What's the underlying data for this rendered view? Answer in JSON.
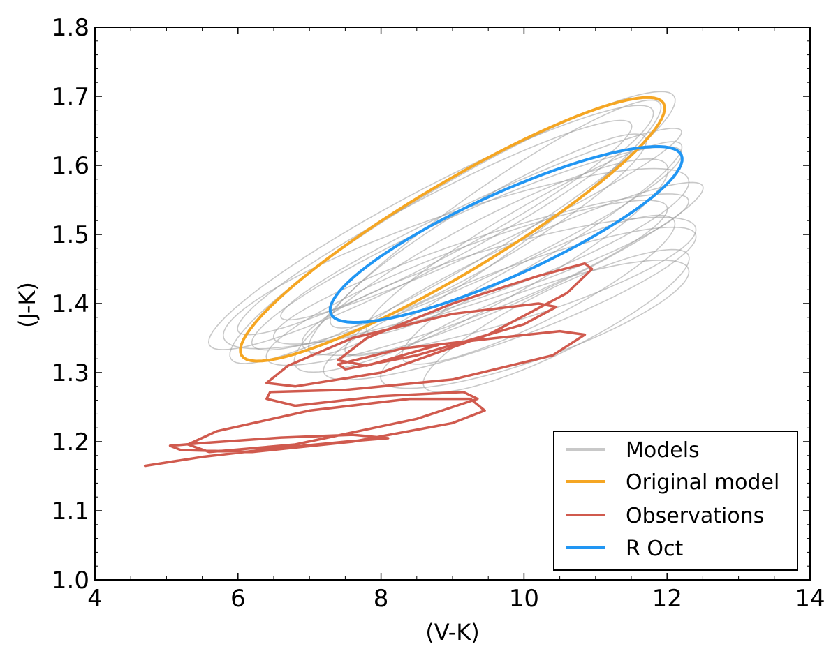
{
  "chart_data": {
    "type": "line",
    "title": "",
    "xlabel": "(V-K)",
    "ylabel": "(J-K)",
    "xlim": [
      4,
      14
    ],
    "ylim": [
      1.0,
      1.8
    ],
    "x_ticks": [
      4,
      6,
      8,
      10,
      12,
      14
    ],
    "x_tick_labels": [
      "4",
      "6",
      "8",
      "10",
      "12",
      "14"
    ],
    "y_ticks": [
      1.0,
      1.1,
      1.2,
      1.3,
      1.4,
      1.5,
      1.6,
      1.7,
      1.8
    ],
    "y_tick_labels": [
      "1.0",
      "1.1",
      "1.2",
      "1.3",
      "1.4",
      "1.5",
      "1.6",
      "1.7",
      "1.8"
    ],
    "grid": false,
    "legend_position": "bottom-right",
    "colors": {
      "models": "#9a9a9a",
      "original": "#f5a623",
      "observations": "#d05a4e",
      "roct": "#2196f3"
    },
    "legend": [
      {
        "label": "Models",
        "color": "#c8c8c8"
      },
      {
        "label": "Original model",
        "color": "#f5a623"
      },
      {
        "label": "Observations",
        "color": "#d05a4e"
      },
      {
        "label": "R Oct",
        "color": "#2196f3"
      }
    ],
    "series": [
      {
        "name": "Models",
        "kind": "ellipses",
        "color": "#9a9a9a",
        "ellipses": [
          {
            "x1": 5.9,
            "y1": 1.32,
            "x2": 12.1,
            "y2": 1.7,
            "w": 0.12
          },
          {
            "x1": 6.2,
            "y1": 1.34,
            "x2": 12.2,
            "y2": 1.62,
            "w": 0.1
          },
          {
            "x1": 6.5,
            "y1": 1.35,
            "x2": 12.3,
            "y2": 1.55,
            "w": 0.09
          },
          {
            "x1": 5.6,
            "y1": 1.34,
            "x2": 11.8,
            "y2": 1.68,
            "w": 0.11
          },
          {
            "x1": 6.8,
            "y1": 1.31,
            "x2": 12.0,
            "y2": 1.6,
            "w": 0.12
          },
          {
            "x1": 7.2,
            "y1": 1.3,
            "x2": 12.4,
            "y2": 1.5,
            "w": 0.1
          },
          {
            "x1": 6.0,
            "y1": 1.36,
            "x2": 11.5,
            "y2": 1.66,
            "w": 0.09
          },
          {
            "x1": 7.5,
            "y1": 1.33,
            "x2": 12.5,
            "y2": 1.57,
            "w": 0.08
          },
          {
            "x1": 8.0,
            "y1": 1.29,
            "x2": 12.3,
            "y2": 1.45,
            "w": 0.1
          },
          {
            "x1": 6.6,
            "y1": 1.38,
            "x2": 12.2,
            "y2": 1.65,
            "w": 0.07
          },
          {
            "x1": 7.0,
            "y1": 1.33,
            "x2": 11.9,
            "y2": 1.69,
            "w": 0.1
          },
          {
            "x1": 8.3,
            "y1": 1.32,
            "x2": 12.1,
            "y2": 1.52,
            "w": 0.09
          },
          {
            "x1": 5.8,
            "y1": 1.35,
            "x2": 12.3,
            "y2": 1.58,
            "w": 0.13
          },
          {
            "x1": 7.8,
            "y1": 1.36,
            "x2": 12.2,
            "y2": 1.63,
            "w": 0.08
          },
          {
            "x1": 6.4,
            "y1": 1.32,
            "x2": 12.0,
            "y2": 1.54,
            "w": 0.1
          },
          {
            "x1": 8.6,
            "y1": 1.28,
            "x2": 12.3,
            "y2": 1.47,
            "w": 0.09
          },
          {
            "x1": 7.3,
            "y1": 1.37,
            "x2": 11.7,
            "y2": 1.64,
            "w": 0.09
          },
          {
            "x1": 6.9,
            "y1": 1.34,
            "x2": 12.4,
            "y2": 1.51,
            "w": 0.11
          }
        ]
      },
      {
        "name": "Original model",
        "kind": "ellipse",
        "color": "#f5a623",
        "x1": 6.05,
        "y1": 1.325,
        "x2": 11.95,
        "y2": 1.69,
        "w": 0.13
      },
      {
        "name": "R Oct",
        "kind": "ellipse",
        "color": "#2196f3",
        "x1": 7.3,
        "y1": 1.385,
        "x2": 12.2,
        "y2": 1.615,
        "w": 0.12
      },
      {
        "name": "Observations",
        "kind": "path",
        "color": "#d05a4e",
        "points": [
          [
            4.7,
            1.165
          ],
          [
            5.5,
            1.178
          ],
          [
            6.5,
            1.19
          ],
          [
            7.5,
            1.2
          ],
          [
            8.1,
            1.205
          ],
          [
            7.6,
            1.21
          ],
          [
            6.6,
            1.206
          ],
          [
            5.5,
            1.198
          ],
          [
            5.05,
            1.194
          ],
          [
            5.2,
            1.188
          ],
          [
            6.2,
            1.185
          ],
          [
            7.6,
            1.2
          ],
          [
            9.0,
            1.227
          ],
          [
            9.45,
            1.245
          ],
          [
            9.25,
            1.262
          ],
          [
            8.4,
            1.262
          ],
          [
            7.0,
            1.245
          ],
          [
            5.7,
            1.215
          ],
          [
            5.3,
            1.196
          ],
          [
            5.6,
            1.185
          ],
          [
            6.8,
            1.196
          ],
          [
            8.5,
            1.233
          ],
          [
            9.35,
            1.262
          ],
          [
            9.15,
            1.272
          ],
          [
            8.0,
            1.266
          ],
          [
            6.8,
            1.252
          ],
          [
            6.4,
            1.262
          ],
          [
            6.45,
            1.272
          ],
          [
            7.5,
            1.275
          ],
          [
            9.0,
            1.29
          ],
          [
            10.4,
            1.325
          ],
          [
            10.85,
            1.355
          ],
          [
            10.5,
            1.36
          ],
          [
            9.6,
            1.35
          ],
          [
            8.3,
            1.335
          ],
          [
            7.4,
            1.312
          ],
          [
            7.5,
            1.305
          ],
          [
            8.5,
            1.325
          ],
          [
            10.0,
            1.37
          ],
          [
            10.45,
            1.395
          ],
          [
            10.2,
            1.4
          ],
          [
            9.0,
            1.385
          ],
          [
            7.6,
            1.35
          ],
          [
            6.7,
            1.31
          ],
          [
            6.4,
            1.285
          ],
          [
            6.8,
            1.28
          ],
          [
            8.0,
            1.3
          ],
          [
            9.5,
            1.355
          ],
          [
            10.6,
            1.415
          ],
          [
            10.95,
            1.45
          ],
          [
            10.85,
            1.458
          ],
          [
            10.2,
            1.44
          ],
          [
            9.0,
            1.4
          ],
          [
            7.8,
            1.35
          ],
          [
            7.4,
            1.318
          ],
          [
            7.8,
            1.31
          ],
          [
            8.8,
            1.34
          ]
        ]
      }
    ]
  }
}
